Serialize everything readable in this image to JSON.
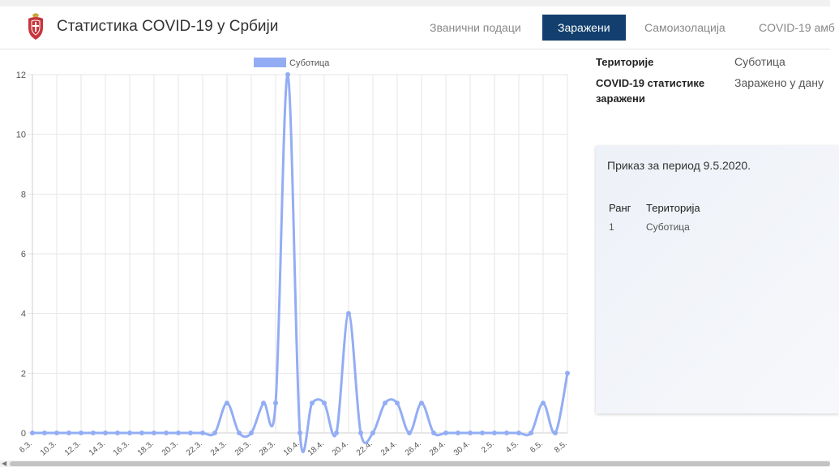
{
  "app": {
    "title": "Статистика COVID-19 у Србији"
  },
  "nav": {
    "items": [
      {
        "label": "Званични подаци"
      },
      {
        "label": "Заражени"
      },
      {
        "label": "Самоизолација"
      },
      {
        "label": "COVID-19 амб"
      }
    ],
    "active_index": 1
  },
  "info": {
    "territories_label": "Територије",
    "territories_value": "Суботица",
    "stats_label_line1": "COVID-19 статистике",
    "stats_label_line2": "заражени",
    "stats_value": "Заражено у дану"
  },
  "panel": {
    "period": "Приказ за период 9.5.2020.",
    "table": {
      "headers": [
        "Ранг",
        "Територија"
      ],
      "rows": [
        [
          "1",
          "Суботица"
        ]
      ]
    }
  },
  "colors": {
    "series": "#93adf5",
    "nav_active": "#123f6e"
  },
  "chart_data": {
    "type": "line",
    "legend": {
      "position": "top",
      "entries": [
        "Суботица"
      ]
    },
    "grid": true,
    "ylim": [
      0,
      12
    ],
    "yticks": [
      "0",
      "2",
      "4",
      "6",
      "8",
      "10",
      "12"
    ],
    "xticks": [
      "6.3.",
      "10.3.",
      "12.3.",
      "14.3.",
      "16.3.",
      "18.3.",
      "20.3.",
      "22.3.",
      "24.3.",
      "26.3.",
      "28.3.",
      "16.4.",
      "18.4.",
      "20.4.",
      "22.4.",
      "24.4.",
      "26.4.",
      "28.4.",
      "30.4.",
      "2.5.",
      "4.5.",
      "6.5.",
      "8.5."
    ],
    "series": [
      {
        "name": "Суботица",
        "values": [
          0,
          0,
          0,
          0,
          0,
          0,
          0,
          0,
          0,
          0,
          0,
          0,
          0,
          0,
          0,
          0,
          1,
          0,
          0,
          1,
          1,
          12,
          0,
          1,
          1,
          0,
          4,
          0,
          0,
          1,
          1,
          0,
          1,
          0,
          0,
          0,
          0,
          0,
          0,
          0,
          0,
          0,
          1,
          0,
          2
        ]
      }
    ]
  }
}
